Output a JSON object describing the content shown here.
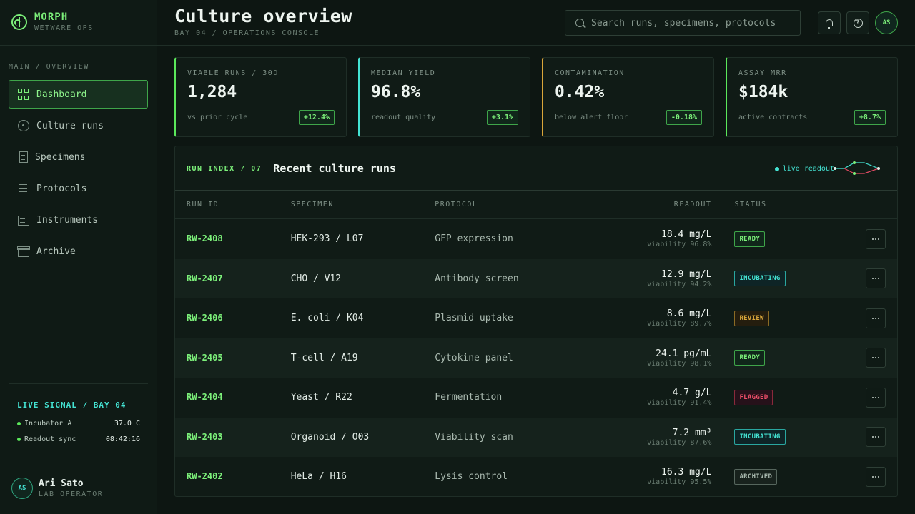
{
  "brand": {
    "name": "MORPH",
    "sub": "WETWARE OPS"
  },
  "nav": {
    "heading": "MAIN / OVERVIEW",
    "items": [
      {
        "label": "Dashboard",
        "icon": "grid-icon"
      },
      {
        "label": "Culture runs",
        "icon": "target-icon"
      },
      {
        "label": "Specimens",
        "icon": "vial-icon"
      },
      {
        "label": "Protocols",
        "icon": "list-icon"
      },
      {
        "label": "Instruments",
        "icon": "instrument-icon"
      },
      {
        "label": "Archive",
        "icon": "archive-icon"
      }
    ]
  },
  "signal": {
    "title": "LIVE SIGNAL / BAY 04",
    "rows": [
      {
        "label": "Incubator A",
        "value": "37.0 C"
      },
      {
        "label": "Readout sync",
        "value": "08:42:16"
      }
    ]
  },
  "user": {
    "initials": "AS",
    "name": "Ari Sato",
    "role": "LAB OPERATOR"
  },
  "header": {
    "title": "Culture overview",
    "subtitle": "BAY 04 / OPERATIONS CONSOLE",
    "search_placeholder": "Search runs, specimens, protocols",
    "avatar": "AS"
  },
  "kpis": [
    {
      "label": "VIABLE RUNS / 30D",
      "value": "1,284",
      "note": "vs prior cycle",
      "delta": "+12.4%",
      "accent": "#5be85b"
    },
    {
      "label": "MEDIAN YIELD",
      "value": "96.8%",
      "note": "readout quality",
      "delta": "+3.1%",
      "accent": "#44e3d3"
    },
    {
      "label": "CONTAMINATION",
      "value": "0.42%",
      "note": "below alert floor",
      "delta": "-0.18%",
      "accent": "#d9a63a"
    },
    {
      "label": "ASSAY MRR",
      "value": "$184k",
      "note": "active contracts",
      "delta": "+8.7%",
      "accent": "#5be85b"
    }
  ],
  "table": {
    "index_label": "RUN INDEX / 07",
    "title": "Recent culture runs",
    "live_label": "live readout",
    "columns": {
      "id": "RUN ID",
      "specimen": "SPECIMEN",
      "protocol": "PROTOCOL",
      "readout": "READOUT",
      "status": "STATUS"
    },
    "rows": [
      {
        "id": "RW-2408",
        "specimen": "HEK-293 / L07",
        "protocol": "GFP expression",
        "readout": "18.4 mg/L",
        "viability": "viability 96.8%",
        "status": "READY",
        "status_class": "b-ready"
      },
      {
        "id": "RW-2407",
        "specimen": "CHO / V12",
        "protocol": "Antibody screen",
        "readout": "12.9 mg/L",
        "viability": "viability 94.2%",
        "status": "INCUBATING",
        "status_class": "b-incubating"
      },
      {
        "id": "RW-2406",
        "specimen": "E. coli / K04",
        "protocol": "Plasmid uptake",
        "readout": "8.6 mg/L",
        "viability": "viability 89.7%",
        "status": "REVIEW",
        "status_class": "b-review"
      },
      {
        "id": "RW-2405",
        "specimen": "T-cell / A19",
        "protocol": "Cytokine panel",
        "readout": "24.1 pg/mL",
        "viability": "viability 98.1%",
        "status": "READY",
        "status_class": "b-ready"
      },
      {
        "id": "RW-2404",
        "specimen": "Yeast / R22",
        "protocol": "Fermentation",
        "readout": "4.7 g/L",
        "viability": "viability 91.4%",
        "status": "FLAGGED",
        "status_class": "b-flagged"
      },
      {
        "id": "RW-2403",
        "specimen": "Organoid / O03",
        "protocol": "Viability scan",
        "readout": "7.2 mm³",
        "viability": "viability 87.6%",
        "status": "INCUBATING",
        "status_class": "b-incubating"
      },
      {
        "id": "RW-2402",
        "specimen": "HeLa / H16",
        "protocol": "Lysis control",
        "readout": "16.3 mg/L",
        "viability": "viability 95.5%",
        "status": "ARCHIVED",
        "status_class": "b-archived"
      }
    ]
  }
}
